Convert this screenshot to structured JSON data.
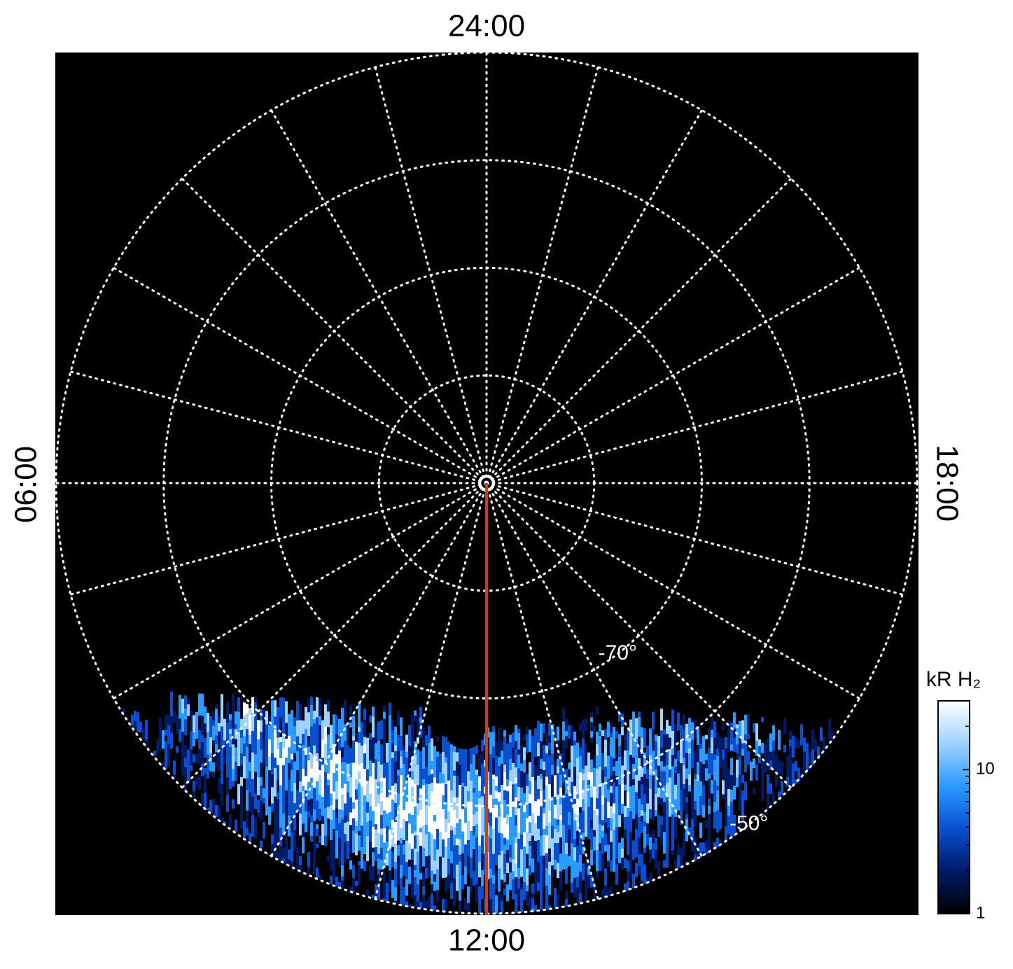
{
  "chart_data": {
    "type": "polar",
    "top_label": "24:00",
    "bottom_label": "12:00",
    "left_label": "06:00",
    "right_label": "18:00",
    "rlim": [
      -90,
      -50
    ],
    "rgrid": [
      -80,
      -70,
      -60,
      -50
    ],
    "rticks": [
      {
        "value": -70,
        "label": "-70°"
      },
      {
        "value": -50,
        "label": "-50°"
      }
    ],
    "hour_lines": 24,
    "grid": true,
    "meridian_color": "#c8401a",
    "colorbar": {
      "label": "kR H₂",
      "lim": [
        1,
        30
      ],
      "ticks": [
        1,
        10
      ],
      "log": true,
      "colors": [
        "#000000",
        "#001a66",
        "#0a4fd0",
        "#2b9bff",
        "#9fd2ff",
        "#ffffff"
      ]
    }
  }
}
